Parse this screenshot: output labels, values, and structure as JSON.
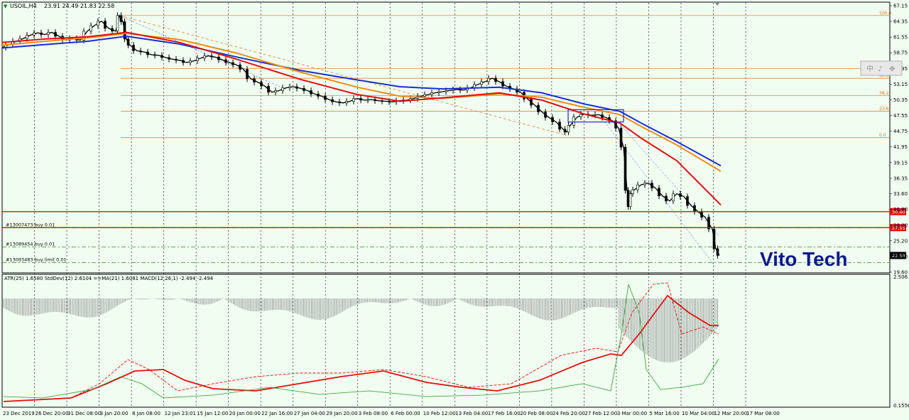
{
  "window": {
    "symbol_label": "USOIL,H4",
    "ohlc": "23.91 24.49 21.83 22.58",
    "toolbar_glyphs": [
      "中",
      "♪",
      "✥"
    ]
  },
  "watermark": {
    "text": "Vito Tech",
    "color": "#0a1a8c"
  },
  "indicator_label": "ATR(25) 1.6580 StdDev(12) 2.6104 ==MA(21) 1.6081 MACD(12,26,1) -2.494 -2.494",
  "colors": {
    "bg": "#f0fdf0",
    "candle": "#000000",
    "ma_blue": "#1a2fd0",
    "ma_orange": "#f08c1a",
    "ma_red": "#e01010",
    "fib": "#e07020",
    "horizontal_red": "#e01010",
    "order_green": "#2a8a2a",
    "grid": "#000000"
  },
  "chart_data": [
    {
      "type": "line",
      "title": "USOIL,H4",
      "ylim": [
        19.6,
        67.15
      ],
      "y_ticks": [
        "67.15",
        "64.35",
        "61.55",
        "58.75",
        "55.95",
        "53.15",
        "50.35",
        "47.55",
        "44.75",
        "41.95",
        "39.15",
        "36.35",
        "33.60",
        "30.80",
        "28.00",
        "25.20",
        "22.40",
        "19.60"
      ],
      "x_ticks": [
        "23 Dec 2019",
        "26 Dec 20:00",
        "31 Dec 08:00",
        "3 Jan 20:00",
        "8 Jan 08:00",
        "12 Jan 23:01",
        "15 Jan 12:00",
        "20 Jan 00:00",
        "22 Jan 16:00",
        "27 Jan 04:00",
        "29 Jan 20:00",
        "3 Feb 08:00",
        "6 Feb 00:00",
        "10 Feb 12:00",
        "13 Feb 04:00",
        "17 Feb 16:00",
        "20 Feb 08:00",
        "24 Feb 20:00",
        "27 Feb 12:00",
        "3 Mar 00:00",
        "5 Mar 16:00",
        "10 Mar 04:00",
        "12 Mar 20:00",
        "17 Mar 08:00"
      ],
      "price_path": [
        [
          0,
          59.7
        ],
        [
          10,
          60.2
        ],
        [
          20,
          60.8
        ],
        [
          30,
          61.3
        ],
        [
          40,
          61.9
        ],
        [
          50,
          62.3
        ],
        [
          60,
          62.0
        ],
        [
          70,
          62.4
        ],
        [
          80,
          61.7
        ],
        [
          90,
          61.0
        ],
        [
          100,
          61.3
        ],
        [
          110,
          61.0
        ],
        [
          120,
          62.6
        ],
        [
          130,
          63.6
        ],
        [
          140,
          64.4
        ],
        [
          150,
          63.1
        ],
        [
          160,
          62.6
        ],
        [
          165,
          65.4
        ],
        [
          170,
          64.3
        ],
        [
          175,
          61.2
        ],
        [
          180,
          60.1
        ],
        [
          190,
          59.1
        ],
        [
          200,
          58.9
        ],
        [
          210,
          58.4
        ],
        [
          220,
          58.3
        ],
        [
          230,
          57.9
        ],
        [
          240,
          57.6
        ],
        [
          250,
          57.4
        ],
        [
          260,
          57.0
        ],
        [
          270,
          57.3
        ],
        [
          280,
          57.8
        ],
        [
          290,
          58.2
        ],
        [
          300,
          58.0
        ],
        [
          310,
          57.5
        ],
        [
          320,
          57.0
        ],
        [
          330,
          56.6
        ],
        [
          340,
          55.8
        ],
        [
          350,
          54.1
        ],
        [
          360,
          53.5
        ],
        [
          370,
          52.8
        ],
        [
          380,
          51.7
        ],
        [
          390,
          52.0
        ],
        [
          400,
          52.5
        ],
        [
          410,
          52.7
        ],
        [
          420,
          52.4
        ],
        [
          430,
          52.0
        ],
        [
          440,
          51.4
        ],
        [
          450,
          51.0
        ],
        [
          460,
          50.4
        ],
        [
          470,
          50.0
        ],
        [
          480,
          49.8
        ],
        [
          490,
          50.1
        ],
        [
          500,
          50.6
        ],
        [
          510,
          50.3
        ],
        [
          520,
          50.4
        ],
        [
          530,
          50.2
        ],
        [
          540,
          50.1
        ],
        [
          550,
          50.0
        ],
        [
          560,
          50.2
        ],
        [
          570,
          50.3
        ],
        [
          580,
          50.6
        ],
        [
          590,
          51.0
        ],
        [
          600,
          51.3
        ],
        [
          610,
          51.6
        ],
        [
          620,
          51.8
        ],
        [
          630,
          52.0
        ],
        [
          640,
          52.2
        ],
        [
          650,
          52.1
        ],
        [
          660,
          52.5
        ],
        [
          670,
          53.1
        ],
        [
          680,
          53.6
        ],
        [
          690,
          54.2
        ],
        [
          700,
          53.6
        ],
        [
          710,
          52.8
        ],
        [
          720,
          52.3
        ],
        [
          730,
          51.7
        ],
        [
          740,
          50.5
        ],
        [
          750,
          49.4
        ],
        [
          760,
          48.2
        ],
        [
          770,
          47.2
        ],
        [
          780,
          46.4
        ],
        [
          790,
          45.1
        ],
        [
          795,
          44.6
        ],
        [
          800,
          45.8
        ],
        [
          810,
          47.3
        ],
        [
          820,
          47.8
        ],
        [
          830,
          47.6
        ],
        [
          840,
          47.7
        ],
        [
          850,
          47.2
        ],
        [
          860,
          46.6
        ],
        [
          868,
          45.3
        ],
        [
          875,
          41.9
        ],
        [
          880,
          34.2
        ],
        [
          883,
          31.3
        ],
        [
          886,
          33.6
        ],
        [
          890,
          34.3
        ],
        [
          900,
          35.2
        ],
        [
          910,
          35.5
        ],
        [
          920,
          34.6
        ],
        [
          930,
          33.2
        ],
        [
          940,
          32.3
        ],
        [
          950,
          33.6
        ],
        [
          960,
          33.1
        ],
        [
          970,
          31.5
        ],
        [
          980,
          30.4
        ],
        [
          990,
          29.4
        ],
        [
          1000,
          27.3
        ],
        [
          1005,
          23.8
        ],
        [
          1010,
          22.58
        ]
      ],
      "moving_averages": [
        {
          "color": "#1a2fd0",
          "points": [
            [
              0,
              59.6
            ],
            [
              60,
              60.2
            ],
            [
              120,
              60.8
            ],
            [
              175,
              61.7
            ],
            [
              250,
              60.3
            ],
            [
              330,
              58.0
            ],
            [
              420,
              55.6
            ],
            [
              500,
              53.9
            ],
            [
              560,
              52.7
            ],
            [
              620,
              52.3
            ],
            [
              700,
              52.6
            ],
            [
              760,
              51.6
            ],
            [
              820,
              49.6
            ],
            [
              870,
              48.3
            ],
            [
              900,
              46.2
            ],
            [
              950,
              42.9
            ],
            [
              1012,
              38.6
            ]
          ]
        },
        {
          "color": "#f08c1a",
          "points": [
            [
              0,
              60.1
            ],
            [
              60,
              60.8
            ],
            [
              120,
              61.4
            ],
            [
              175,
              62.2
            ],
            [
              250,
              61.1
            ],
            [
              330,
              58.7
            ],
            [
              420,
              55.3
            ],
            [
              500,
              52.6
            ],
            [
              560,
              51.0
            ],
            [
              620,
              50.6
            ],
            [
              700,
              51.4
            ],
            [
              760,
              50.8
            ],
            [
              820,
              49.0
            ],
            [
              870,
              47.7
            ],
            [
              900,
              45.6
            ],
            [
              950,
              42.3
            ],
            [
              1012,
              37.6
            ]
          ]
        },
        {
          "color": "#e01010",
          "points": [
            [
              0,
              60.6
            ],
            [
              60,
              61.2
            ],
            [
              120,
              61.6
            ],
            [
              175,
              62.4
            ],
            [
              250,
              60.6
            ],
            [
              330,
              57.6
            ],
            [
              420,
              54.0
            ],
            [
              500,
              51.3
            ],
            [
              560,
              50.1
            ],
            [
              620,
              50.7
            ],
            [
              700,
              51.6
            ],
            [
              760,
              50.3
            ],
            [
              820,
              47.8
            ],
            [
              870,
              46.2
            ],
            [
              900,
              43.5
            ],
            [
              950,
              39.5
            ],
            [
              1012,
              31.6
            ]
          ]
        }
      ],
      "fib_levels": [
        {
          "label": "100.0",
          "price": 65.4
        },
        {
          "label": "61.8",
          "price": 55.95
        },
        {
          "label": "50.0",
          "price": 54.2
        },
        {
          "label": "38.2",
          "price": 51.1
        },
        {
          "label": "23.6",
          "price": 48.3
        },
        {
          "label": "0.0",
          "price": 43.6
        }
      ],
      "horizontal_lines": [
        {
          "price": 30.4,
          "tag": "30.40",
          "color": "#e01010"
        },
        {
          "price": 27.55,
          "tag": "27.55",
          "color": "#e01010"
        }
      ],
      "orders": [
        {
          "label": "#13007473 buy 0.01",
          "price": 27.55
        },
        {
          "label": "#13089454 buy 0.01",
          "price": 24.1
        },
        {
          "label": "#13093483 buy limit 0.01",
          "price": 21.3
        }
      ],
      "current_price_tag": "22.58",
      "rect_zone": {
        "x0": 797,
        "x1": 875,
        "y_top": 48.6,
        "y_bottom": 46.4
      }
    },
    {
      "type": "line",
      "title": "ATR(25) 1.6580 StdDev(12) 2.6104 ==MA(21) 1.6081 MACD(12,26,1) -2.494 -2.494",
      "y_ticks": [
        "2.506",
        "0.1556"
      ]
    }
  ]
}
